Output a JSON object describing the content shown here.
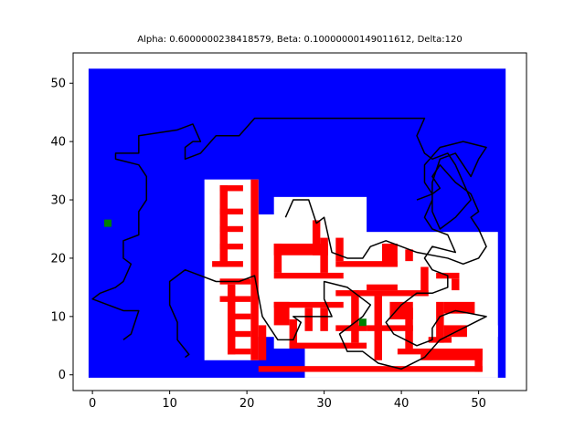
{
  "chart_data": {
    "type": "scatter",
    "title": "Alpha: 0.6000000238418579, Beta: 0.10000000149011612, Delta:120",
    "xlabel": "",
    "ylabel": "",
    "xlim": [
      -2.5,
      56.2
    ],
    "ylim": [
      -2.7,
      55.2
    ],
    "xticks": [
      0,
      10,
      20,
      30,
      40,
      50
    ],
    "yticks": [
      0,
      10,
      20,
      30,
      40,
      50
    ],
    "grid": false,
    "colors": {
      "background": "#0000ff",
      "free": "#ffffff",
      "obstacle": "#ff0000",
      "path": "#000000",
      "endpoint": "#008000"
    },
    "field": {
      "x": [
        -0.5,
        53.5
      ],
      "y": [
        -0.5,
        52.5
      ]
    },
    "free_regions": [
      [
        15,
        3,
        22,
        34
      ],
      [
        20,
        7,
        28,
        28
      ],
      [
        24,
        5,
        36,
        31
      ],
      [
        28,
        0,
        53,
        25
      ],
      [
        40,
        2,
        50,
        21
      ],
      [
        34,
        17,
        46,
        21
      ],
      [
        38,
        9,
        52,
        15
      ],
      [
        48,
        7,
        53,
        9
      ]
    ],
    "obstacles": [
      [
        17,
        19,
        18,
        33
      ],
      [
        17,
        32,
        20,
        33
      ],
      [
        17,
        28,
        20,
        29
      ],
      [
        17,
        25,
        20,
        26
      ],
      [
        17,
        22,
        20,
        23
      ],
      [
        16,
        19,
        20,
        20
      ],
      [
        17,
        16,
        21,
        17
      ],
      [
        17,
        13,
        21,
        14
      ],
      [
        18,
        10,
        21,
        11
      ],
      [
        18,
        7,
        21,
        8
      ],
      [
        18,
        4,
        21,
        5
      ],
      [
        18,
        4,
        19,
        16
      ],
      [
        21,
        3,
        22,
        34
      ],
      [
        22,
        3,
        23,
        9
      ],
      [
        24,
        18,
        25,
        23
      ],
      [
        24,
        17,
        33,
        18
      ],
      [
        24,
        21,
        31,
        23
      ],
      [
        29,
        21,
        30,
        27
      ],
      [
        30,
        18,
        31,
        24
      ],
      [
        32,
        19,
        40,
        20
      ],
      [
        38,
        19,
        40,
        23
      ],
      [
        32,
        20,
        33,
        24
      ],
      [
        24,
        12,
        33,
        13
      ],
      [
        24,
        9,
        26,
        13
      ],
      [
        26,
        5,
        27,
        10
      ],
      [
        26,
        5,
        36,
        6
      ],
      [
        28,
        8,
        29,
        12
      ],
      [
        30,
        8,
        31,
        12
      ],
      [
        32,
        8,
        36,
        9
      ],
      [
        34,
        6,
        35,
        15
      ],
      [
        32,
        14,
        44,
        15
      ],
      [
        43,
        14,
        44,
        19
      ],
      [
        36,
        15,
        40,
        16
      ],
      [
        37,
        3,
        38,
        14
      ],
      [
        36,
        8,
        42,
        9
      ],
      [
        39,
        10,
        42,
        13
      ],
      [
        41,
        5,
        42,
        12
      ],
      [
        41,
        20,
        42,
        22
      ],
      [
        40,
        4,
        44,
        5
      ],
      [
        22,
        1,
        51,
        2
      ],
      [
        50,
        1,
        51,
        5
      ],
      [
        43,
        3,
        51,
        5
      ],
      [
        44,
        6,
        47,
        7
      ],
      [
        45,
        6,
        46,
        13
      ],
      [
        46,
        11,
        50,
        13
      ],
      [
        46,
        7,
        49,
        9
      ],
      [
        45,
        17,
        48,
        18
      ],
      [
        47,
        15,
        48,
        17
      ]
    ],
    "path": [
      [
        12,
        3
      ],
      [
        12.5,
        3.5
      ],
      [
        11,
        6
      ],
      [
        11,
        9
      ],
      [
        10,
        12
      ],
      [
        10,
        16
      ],
      [
        12,
        18
      ],
      [
        14,
        17
      ],
      [
        16,
        16
      ],
      [
        19,
        16
      ],
      [
        21,
        17
      ],
      [
        22,
        10
      ],
      [
        24,
        6
      ],
      [
        26,
        6
      ],
      [
        27,
        9
      ],
      [
        26,
        10
      ],
      [
        31,
        10
      ],
      [
        30,
        13
      ],
      [
        30,
        16
      ],
      [
        33,
        15
      ],
      [
        36,
        12
      ],
      [
        35,
        10
      ],
      [
        32,
        7
      ],
      [
        33,
        4
      ],
      [
        35,
        4
      ],
      [
        37,
        2
      ],
      [
        40,
        1
      ],
      [
        43,
        3
      ],
      [
        45,
        6
      ],
      [
        48,
        8
      ],
      [
        51,
        10
      ],
      [
        47,
        11
      ],
      [
        45,
        10
      ],
      [
        44,
        8
      ],
      [
        44,
        6
      ],
      [
        42,
        5
      ],
      [
        39,
        7
      ],
      [
        38,
        9
      ],
      [
        40,
        12
      ],
      [
        42,
        14
      ],
      [
        44,
        14
      ],
      [
        46,
        15
      ],
      [
        46,
        17
      ],
      [
        44,
        18
      ],
      [
        43,
        20
      ],
      [
        44,
        22
      ],
      [
        47,
        21
      ],
      [
        46,
        24
      ],
      [
        44,
        25
      ],
      [
        43,
        27
      ],
      [
        44,
        30
      ],
      [
        44,
        33
      ],
      [
        45,
        37
      ],
      [
        47,
        38
      ],
      [
        49,
        34
      ],
      [
        50,
        37
      ],
      [
        51,
        39
      ],
      [
        48,
        40
      ],
      [
        45,
        39
      ],
      [
        43,
        36
      ],
      [
        43,
        33
      ],
      [
        44,
        31
      ],
      [
        44,
        28
      ],
      [
        45,
        25
      ],
      [
        47,
        27
      ],
      [
        49,
        30
      ],
      [
        48,
        33
      ],
      [
        47,
        36
      ],
      [
        46,
        38
      ],
      [
        44,
        37
      ],
      [
        43,
        38
      ],
      [
        42,
        41
      ],
      [
        43,
        44
      ],
      [
        21,
        44
      ],
      [
        19,
        41
      ],
      [
        16,
        41
      ],
      [
        14,
        38
      ],
      [
        12,
        37
      ],
      [
        12,
        39
      ],
      [
        13,
        40
      ],
      [
        14,
        40
      ],
      [
        13,
        43
      ],
      [
        11,
        42
      ],
      [
        6,
        41
      ],
      [
        6,
        38
      ],
      [
        3,
        38
      ],
      [
        3,
        37
      ],
      [
        6,
        36
      ],
      [
        7,
        34
      ],
      [
        7,
        30
      ],
      [
        6,
        28
      ],
      [
        6,
        24
      ],
      [
        4,
        23
      ],
      [
        4,
        20
      ],
      [
        5,
        19
      ],
      [
        4,
        16
      ],
      [
        3,
        15
      ],
      [
        1,
        14
      ],
      [
        0,
        13
      ],
      [
        4,
        11
      ],
      [
        6,
        11
      ],
      [
        5,
        7
      ],
      [
        4,
        6
      ]
    ],
    "path2": [
      [
        25,
        27
      ],
      [
        26,
        30
      ],
      [
        28,
        30
      ],
      [
        29,
        26
      ],
      [
        30,
        27
      ],
      [
        31,
        21
      ],
      [
        33,
        20
      ],
      [
        35,
        20
      ],
      [
        36,
        22
      ],
      [
        38,
        23
      ],
      [
        40,
        22
      ],
      [
        42,
        21
      ],
      [
        46,
        20
      ],
      [
        48,
        19
      ],
      [
        50,
        20
      ],
      [
        51,
        22
      ],
      [
        50,
        25
      ],
      [
        49,
        27
      ],
      [
        50,
        28
      ],
      [
        49,
        31
      ],
      [
        47,
        33
      ],
      [
        45,
        36
      ],
      [
        44,
        34
      ],
      [
        45,
        32
      ],
      [
        44,
        31
      ],
      [
        42,
        30
      ]
    ],
    "endpoints": [
      [
        2,
        26
      ],
      [
        35,
        9
      ]
    ]
  }
}
